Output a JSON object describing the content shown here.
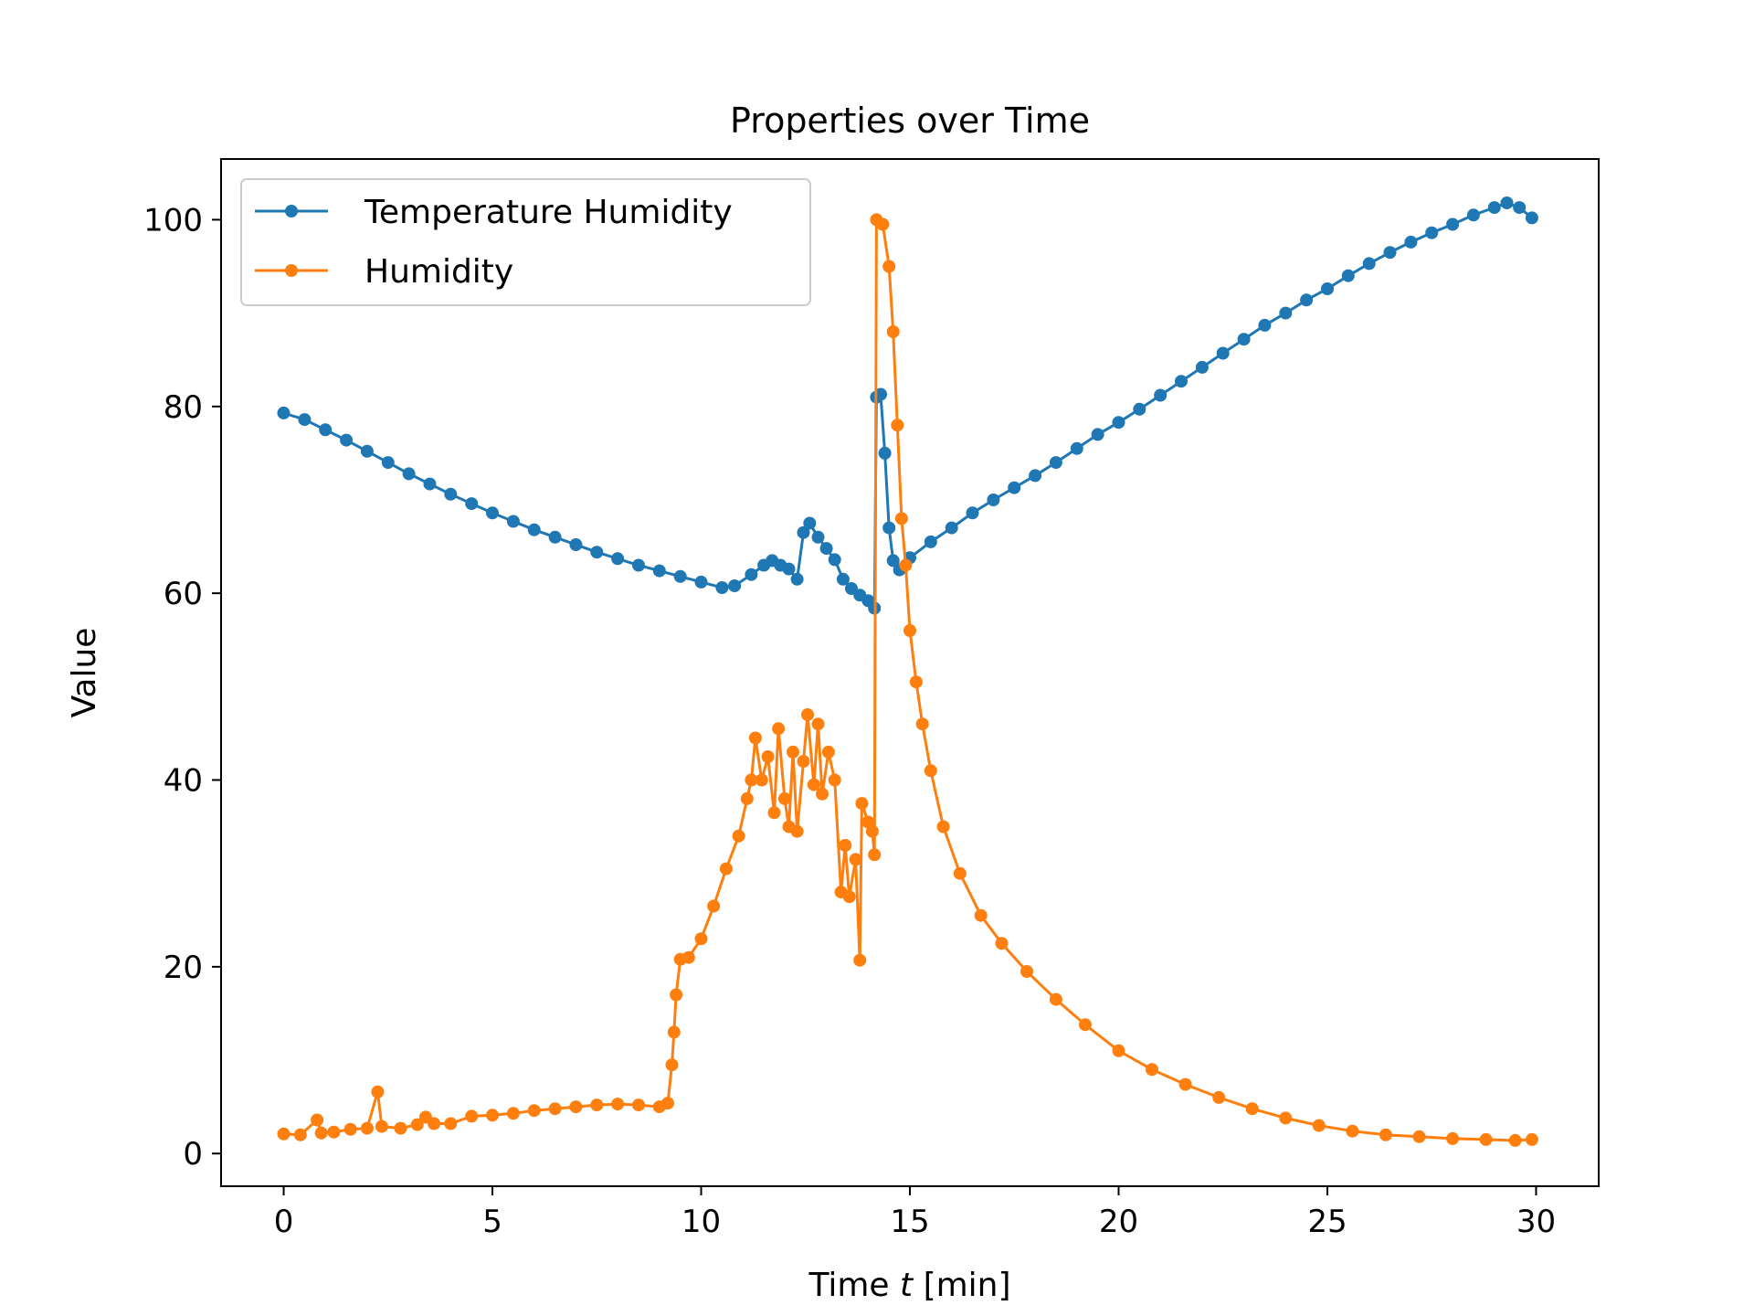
{
  "chart_data": {
    "type": "line",
    "title": "Properties over Time",
    "xlabel_prefix": "Time ",
    "xlabel_var": "t",
    "xlabel_suffix": " [min]",
    "ylabel": "Value",
    "xlim": [
      -1.5,
      31.5
    ],
    "ylim": [
      -3.5,
      106.5
    ],
    "xticks": [
      0,
      5,
      10,
      15,
      20,
      25,
      30
    ],
    "yticks": [
      0,
      20,
      40,
      60,
      80,
      100
    ],
    "grid": false,
    "legend_position": "upper-left",
    "series": [
      {
        "name": "Temperature Humidity",
        "color": "#1f77b4",
        "points": [
          [
            0,
            79.3
          ],
          [
            0.5,
            78.6
          ],
          [
            1,
            77.5
          ],
          [
            1.5,
            76.4
          ],
          [
            2,
            75.2
          ],
          [
            2.5,
            74.0
          ],
          [
            3,
            72.8
          ],
          [
            3.5,
            71.7
          ],
          [
            4,
            70.6
          ],
          [
            4.5,
            69.6
          ],
          [
            5,
            68.6
          ],
          [
            5.5,
            67.7
          ],
          [
            6,
            66.8
          ],
          [
            6.5,
            66.0
          ],
          [
            7,
            65.2
          ],
          [
            7.5,
            64.4
          ],
          [
            8,
            63.7
          ],
          [
            8.5,
            63.0
          ],
          [
            9,
            62.4
          ],
          [
            9.5,
            61.8
          ],
          [
            10,
            61.2
          ],
          [
            10.5,
            60.6
          ],
          [
            10.8,
            60.8
          ],
          [
            11.2,
            62.0
          ],
          [
            11.5,
            63.0
          ],
          [
            11.7,
            63.5
          ],
          [
            11.9,
            63.0
          ],
          [
            12.1,
            62.6
          ],
          [
            12.3,
            61.5
          ],
          [
            12.45,
            66.5
          ],
          [
            12.6,
            67.5
          ],
          [
            12.8,
            66.0
          ],
          [
            13.0,
            64.8
          ],
          [
            13.2,
            63.6
          ],
          [
            13.4,
            61.5
          ],
          [
            13.6,
            60.5
          ],
          [
            13.8,
            59.8
          ],
          [
            14.0,
            59.2
          ],
          [
            14.15,
            58.4
          ],
          [
            14.2,
            81.0
          ],
          [
            14.3,
            81.3
          ],
          [
            14.4,
            75.0
          ],
          [
            14.5,
            67.0
          ],
          [
            14.6,
            63.5
          ],
          [
            14.75,
            62.5
          ],
          [
            15.0,
            63.8
          ],
          [
            15.5,
            65.5
          ],
          [
            16,
            67.0
          ],
          [
            16.5,
            68.6
          ],
          [
            17,
            70.0
          ],
          [
            17.5,
            71.3
          ],
          [
            18,
            72.6
          ],
          [
            18.5,
            74.0
          ],
          [
            19,
            75.5
          ],
          [
            19.5,
            77.0
          ],
          [
            20,
            78.3
          ],
          [
            20.5,
            79.7
          ],
          [
            21,
            81.2
          ],
          [
            21.5,
            82.7
          ],
          [
            22,
            84.2
          ],
          [
            22.5,
            85.7
          ],
          [
            23,
            87.2
          ],
          [
            23.5,
            88.7
          ],
          [
            24,
            90.0
          ],
          [
            24.5,
            91.4
          ],
          [
            25,
            92.6
          ],
          [
            25.5,
            94.0
          ],
          [
            26,
            95.3
          ],
          [
            26.5,
            96.5
          ],
          [
            27,
            97.6
          ],
          [
            27.5,
            98.6
          ],
          [
            28,
            99.5
          ],
          [
            28.5,
            100.5
          ],
          [
            29,
            101.3
          ],
          [
            29.3,
            101.8
          ],
          [
            29.6,
            101.3
          ],
          [
            29.9,
            100.2
          ]
        ]
      },
      {
        "name": "Humidity",
        "color": "#ff7f0e",
        "points": [
          [
            0,
            2.1
          ],
          [
            0.4,
            2.0
          ],
          [
            0.8,
            3.6
          ],
          [
            0.9,
            2.2
          ],
          [
            1.2,
            2.3
          ],
          [
            1.6,
            2.6
          ],
          [
            2.0,
            2.7
          ],
          [
            2.25,
            6.6
          ],
          [
            2.35,
            2.9
          ],
          [
            2.8,
            2.7
          ],
          [
            3.2,
            3.1
          ],
          [
            3.4,
            3.9
          ],
          [
            3.6,
            3.2
          ],
          [
            4.0,
            3.2
          ],
          [
            4.5,
            4.0
          ],
          [
            5,
            4.1
          ],
          [
            5.5,
            4.3
          ],
          [
            6,
            4.6
          ],
          [
            6.5,
            4.8
          ],
          [
            7,
            5.0
          ],
          [
            7.5,
            5.2
          ],
          [
            8,
            5.3
          ],
          [
            8.5,
            5.2
          ],
          [
            9.0,
            5.0
          ],
          [
            9.2,
            5.4
          ],
          [
            9.3,
            9.5
          ],
          [
            9.35,
            13.0
          ],
          [
            9.4,
            17.0
          ],
          [
            9.5,
            20.8
          ],
          [
            9.7,
            21.0
          ],
          [
            10.0,
            23.0
          ],
          [
            10.3,
            26.5
          ],
          [
            10.6,
            30.5
          ],
          [
            10.9,
            34.0
          ],
          [
            11.1,
            38.0
          ],
          [
            11.2,
            40.0
          ],
          [
            11.3,
            44.5
          ],
          [
            11.45,
            40.0
          ],
          [
            11.6,
            42.5
          ],
          [
            11.75,
            36.5
          ],
          [
            11.85,
            45.5
          ],
          [
            12.0,
            38.0
          ],
          [
            12.1,
            35.0
          ],
          [
            12.2,
            43.0
          ],
          [
            12.3,
            34.5
          ],
          [
            12.45,
            42.0
          ],
          [
            12.55,
            47.0
          ],
          [
            12.7,
            39.5
          ],
          [
            12.8,
            46.0
          ],
          [
            12.9,
            38.5
          ],
          [
            13.05,
            43.0
          ],
          [
            13.2,
            40.0
          ],
          [
            13.35,
            28.0
          ],
          [
            13.45,
            33.0
          ],
          [
            13.55,
            27.5
          ],
          [
            13.7,
            31.5
          ],
          [
            13.8,
            20.7
          ],
          [
            13.85,
            37.5
          ],
          [
            14.0,
            35.5
          ],
          [
            14.1,
            34.5
          ],
          [
            14.15,
            32.0
          ],
          [
            14.2,
            100.0
          ],
          [
            14.35,
            99.5
          ],
          [
            14.5,
            95.0
          ],
          [
            14.6,
            88.0
          ],
          [
            14.7,
            78.0
          ],
          [
            14.8,
            68.0
          ],
          [
            14.9,
            63.0
          ],
          [
            15.0,
            56.0
          ],
          [
            15.15,
            50.5
          ],
          [
            15.3,
            46.0
          ],
          [
            15.5,
            41.0
          ],
          [
            15.8,
            35.0
          ],
          [
            16.2,
            30.0
          ],
          [
            16.7,
            25.5
          ],
          [
            17.2,
            22.5
          ],
          [
            17.8,
            19.5
          ],
          [
            18.5,
            16.5
          ],
          [
            19.2,
            13.8
          ],
          [
            20.0,
            11.0
          ],
          [
            20.8,
            9.0
          ],
          [
            21.6,
            7.4
          ],
          [
            22.4,
            6.0
          ],
          [
            23.2,
            4.8
          ],
          [
            24.0,
            3.8
          ],
          [
            24.8,
            3.0
          ],
          [
            25.6,
            2.4
          ],
          [
            26.4,
            2.0
          ],
          [
            27.2,
            1.8
          ],
          [
            28.0,
            1.6
          ],
          [
            28.8,
            1.5
          ],
          [
            29.5,
            1.4
          ],
          [
            29.9,
            1.5
          ]
        ]
      }
    ]
  }
}
